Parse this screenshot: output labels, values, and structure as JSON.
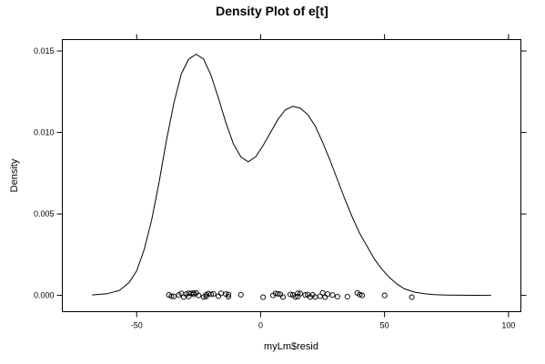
{
  "chart_data": {
    "type": "line",
    "title": "Density Plot of e[t]",
    "xlabel": "myLm$resid",
    "ylabel": "Density",
    "xlim": [
      -80,
      105
    ],
    "ylim": [
      -0.001,
      0.0157
    ],
    "x_ticks": [
      -50,
      0,
      50,
      100
    ],
    "x_tick_labels": [
      "-50",
      "0",
      "50",
      "100"
    ],
    "y_ticks": [
      0,
      0.005,
      0.01,
      0.015
    ],
    "y_tick_labels": [
      "0.000",
      "0.005",
      "0.010",
      "0.015"
    ],
    "grid": false,
    "legend": "none",
    "series": [
      {
        "x": [
          -68,
          -62,
          -57,
          -53,
          -50,
          -47,
          -44,
          -41,
          -38,
          -35,
          -32,
          -29,
          -26,
          -23,
          -20,
          -17,
          -14,
          -11,
          -8,
          -5,
          -2,
          1,
          4,
          7,
          10,
          13,
          16,
          19,
          22,
          25,
          28,
          31,
          34,
          37,
          40,
          43,
          46,
          49,
          52,
          55,
          58,
          62,
          66,
          70,
          75,
          80,
          86,
          93
        ],
        "y": [
          3e-05,
          0.0001,
          0.0003,
          0.0008,
          0.0015,
          0.0028,
          0.0046,
          0.0069,
          0.0095,
          0.0118,
          0.0136,
          0.0145,
          0.0148,
          0.0145,
          0.0135,
          0.0121,
          0.0106,
          0.0093,
          0.0085,
          0.0082,
          0.0085,
          0.0092,
          0.01,
          0.0108,
          0.0114,
          0.0116,
          0.0115,
          0.0111,
          0.0104,
          0.0094,
          0.0083,
          0.0071,
          0.0059,
          0.0048,
          0.0038,
          0.003,
          0.0022,
          0.0016,
          0.0011,
          0.0007,
          0.0004,
          0.0002,
          0.0001,
          5e-05,
          2e-05,
          1e-05,
          5e-06,
          0
        ]
      }
    ],
    "rug_points": {
      "x": [
        -37,
        -36,
        -35,
        -33,
        -32,
        -31,
        -30,
        -29,
        -29,
        -28,
        -27,
        -27,
        -26,
        -25,
        -23,
        -22,
        -22,
        -21,
        -20,
        -19,
        -17,
        -16,
        -14,
        -13,
        -13,
        -8,
        1,
        5,
        6,
        7,
        8,
        9,
        12,
        13,
        14,
        15,
        15,
        16,
        18,
        19,
        20,
        21,
        22,
        24,
        25,
        26,
        27,
        29,
        31,
        35,
        39,
        40,
        41,
        50,
        61
      ],
      "y": [
        3e-05,
        -5e-05,
        -6e-05,
        2e-05,
        0.00012,
        -0.0001,
        8e-05,
        0.00013,
        -6e-05,
        0.00012,
        0.00015,
        6e-05,
        0.00015,
        0.0,
        -0.0001,
        -7e-05,
        4e-05,
        0.00011,
        6e-05,
        9e-05,
        -5e-05,
        0.00013,
        8e-05,
        -8e-05,
        5e-05,
        4e-05,
        -0.00011,
        0.0,
        0.00012,
        0.0001,
        6e-05,
        -0.0001,
        6e-05,
        3e-05,
        -0.0001,
        -7e-05,
        0.00013,
        0.00011,
        2e-05,
        5e-05,
        -0.0001,
        3e-05,
        -0.0001,
        -5e-05,
        0.00015,
        -0.00011,
        8e-05,
        2e-05,
        -8e-05,
        -8e-05,
        0.00015,
        5e-05,
        0.0,
        0.0,
        -0.00011
      ]
    }
  }
}
